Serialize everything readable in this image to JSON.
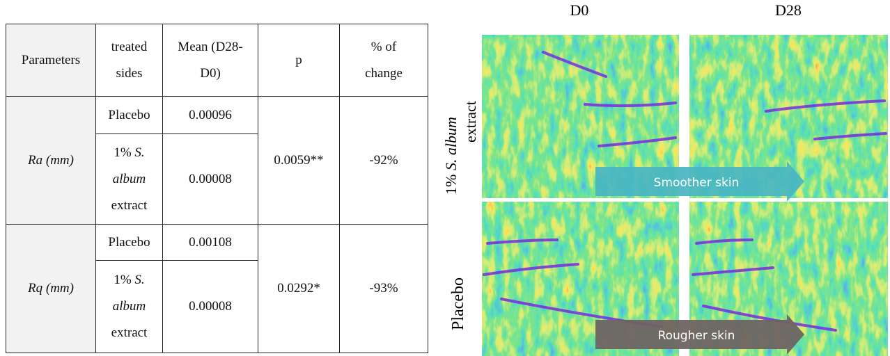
{
  "table": {
    "header": [
      "Parameters",
      "treated sides",
      "Mean (D28-D0)",
      "p",
      "% of change"
    ],
    "groups": [
      {
        "parameter": "Ra (mm)",
        "p": "0.0059**",
        "change": "-92%",
        "rows": [
          {
            "side": "Placebo",
            "mean": "0.00096"
          },
          {
            "side": {
              "dose": "1%",
              "genus": "S.",
              "species": "album",
              "form": "extract"
            },
            "mean": "0.00008"
          }
        ]
      },
      {
        "parameter": "Rq (mm)",
        "p": "0.0292*",
        "change": "-93%",
        "rows": [
          {
            "side": "Placebo",
            "mean": "0.00108"
          },
          {
            "side": {
              "dose": "1%",
              "genus": "S.",
              "species": "album",
              "form": "extract"
            },
            "mean": "0.00008"
          }
        ]
      }
    ]
  },
  "images": {
    "columns": [
      "D0",
      "D28"
    ],
    "rows": [
      {
        "label": {
          "dose": "1%",
          "genus": "S.",
          "species": "album",
          "form": "extract"
        },
        "arrow": "Smoother skin"
      },
      {
        "label": "Placebo",
        "arrow": "Rougher skin"
      }
    ]
  }
}
